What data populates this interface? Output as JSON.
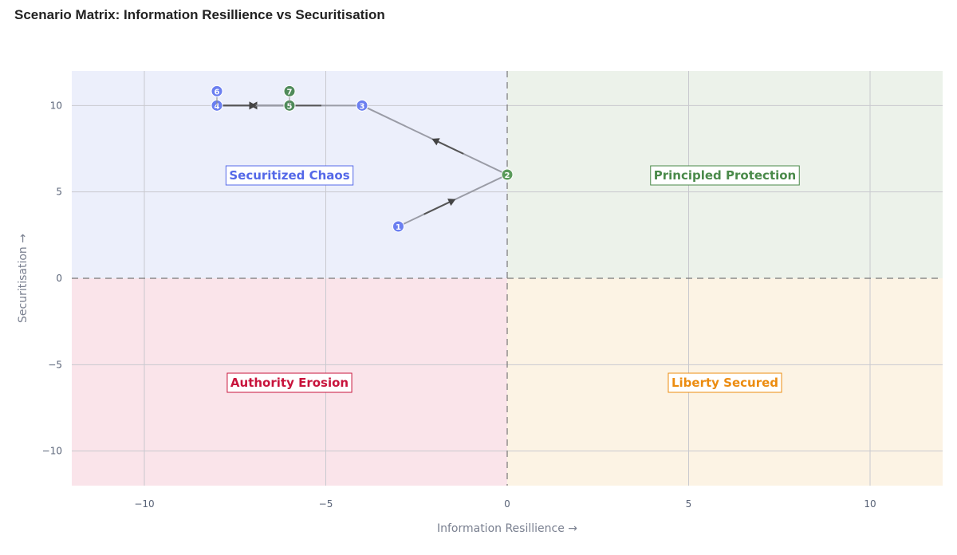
{
  "chart_data": {
    "type": "scatter",
    "title": "Scenario Matrix: Information Resillience vs Securitisation",
    "xlabel": "Information Resillience →",
    "ylabel": "Securitisation →",
    "xlim": [
      -12,
      12
    ],
    "ylim": [
      -12,
      12
    ],
    "xticks": [
      -10,
      -5,
      0,
      5,
      10
    ],
    "yticks": [
      -10,
      -5,
      0,
      5,
      10
    ],
    "xtick_labels": [
      "−10",
      "−5",
      "0",
      "5",
      "10"
    ],
    "ytick_labels": [
      "−10",
      "−5",
      "0",
      "5",
      "10"
    ],
    "grid": true,
    "quadrants": [
      {
        "label": "Securitized Chaos",
        "x": [
          -12,
          0
        ],
        "y": [
          0,
          12
        ],
        "fill": "#eceffb",
        "color": "#5468e8"
      },
      {
        "label": "Principled Protection",
        "x": [
          0,
          12
        ],
        "y": [
          0,
          12
        ],
        "fill": "#ecf2ea",
        "color": "#4a8a4a"
      },
      {
        "label": "Authority Erosion",
        "x": [
          -12,
          0
        ],
        "y": [
          -12,
          0
        ],
        "fill": "#fae4ea",
        "color": "#c8143c"
      },
      {
        "label": "Liberty Secured",
        "x": [
          0,
          12
        ],
        "y": [
          -12,
          0
        ],
        "fill": "#fcf3e4",
        "color": "#ec8c10"
      }
    ],
    "points": [
      {
        "label": "1",
        "x": -3,
        "y": 3,
        "color": "#6b7ff0"
      },
      {
        "label": "2",
        "x": 0,
        "y": 6,
        "color": "#5a9a5a"
      },
      {
        "label": "3",
        "x": -4,
        "y": 10,
        "color": "#6b7ff0"
      },
      {
        "label": "4",
        "x": -8,
        "y": 10,
        "color": "#6b7ff0"
      },
      {
        "label": "5",
        "x": -6,
        "y": 10,
        "color": "#4f8a5a"
      },
      {
        "label": "6",
        "x": -8,
        "y": 10,
        "color": "#6b7ff0"
      },
      {
        "label": "7",
        "x": -6,
        "y": 10,
        "color": "#4f8a5a"
      }
    ]
  }
}
